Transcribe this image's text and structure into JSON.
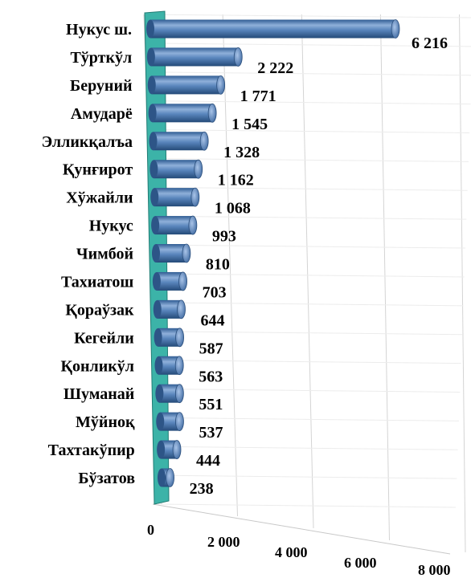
{
  "chart_data": {
    "type": "bar",
    "orientation": "horizontal",
    "style": "3d-cylinder",
    "categories": [
      "Нукус ш.",
      "Тўрткўл",
      "Беруний",
      "Амударё",
      "Элликқалъа",
      "Қунғирот",
      "Хўжайли",
      "Нукус",
      "Чимбой",
      "Тахиатош",
      "Қораўзак",
      "Кегейли",
      "Қонликўл",
      "Шуманай",
      "Мўйноқ",
      "Тахтакўпир",
      "Бўзатов"
    ],
    "values": [
      6216,
      2222,
      1771,
      1545,
      1328,
      1162,
      1068,
      993,
      810,
      703,
      644,
      587,
      563,
      551,
      537,
      444,
      238
    ],
    "value_labels": [
      "6 216",
      "2 222",
      "1 771",
      "1 545",
      "1 328",
      "1 162",
      "1 068",
      "993",
      "810",
      "703",
      "644",
      "587",
      "563",
      "551",
      "537",
      "444",
      "238"
    ],
    "xticks": [
      0,
      2000,
      4000,
      6000,
      8000
    ],
    "xtick_labels": [
      "0",
      "2 000",
      "4 000",
      "6 000",
      "8 000"
    ],
    "xlim": [
      0,
      8000
    ],
    "grid": true,
    "colors": {
      "bar": "#4f81bd",
      "bar_dark": "#2b4f7c",
      "bar_light": "#9cbbe3",
      "wall": "#3cb3a8",
      "grid": "#d4d4d4"
    }
  }
}
